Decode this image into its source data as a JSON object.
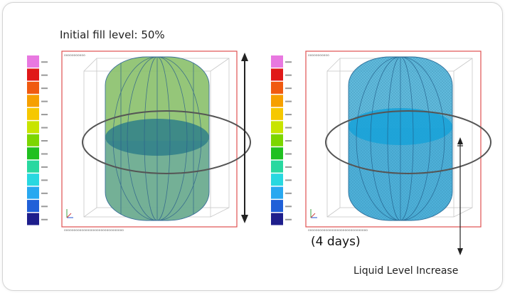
{
  "title": "Initial fill level: 50%",
  "duration_label": "(4 days)",
  "annotation_label": "Liquid Level Increase",
  "color_scale": [
    "#e878e0",
    "#e01818",
    "#f05a10",
    "#f6a000",
    "#f6c800",
    "#c8e400",
    "#7cd600",
    "#20c020",
    "#28d8a0",
    "#28d8e0",
    "#28a8f0",
    "#2060d8",
    "#1e1e8c"
  ],
  "colors": {
    "frame": "#e05050",
    "tank_green": "#7fba6a",
    "tank_blue": "#4fb3d8",
    "liquid_dark": "#2f7f8a",
    "liquid_blue": "#1ba3d8"
  }
}
